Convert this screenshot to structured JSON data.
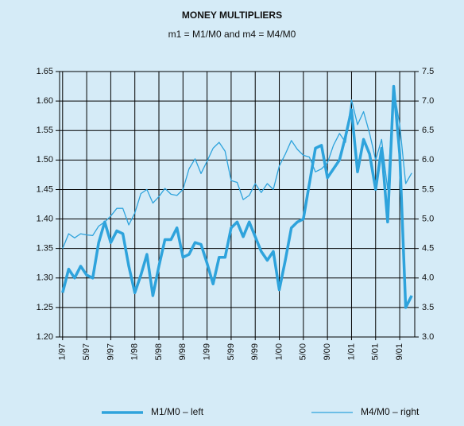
{
  "chart_data": {
    "type": "line",
    "title": "MONEY MULTIPLIERS",
    "subtitle": "m1 = M1/M0 and m4 = M4/M0",
    "categories": [
      "1/97",
      null,
      null,
      null,
      "5/97",
      null,
      null,
      null,
      "9/97",
      null,
      null,
      null,
      "1/98",
      null,
      null,
      null,
      "5/98",
      null,
      null,
      null,
      "9/98",
      null,
      null,
      null,
      "1/99",
      null,
      null,
      null,
      "5/99",
      null,
      null,
      null,
      "9/99",
      null,
      null,
      null,
      "1/00",
      null,
      null,
      null,
      "5/00",
      null,
      null,
      null,
      "9/00",
      null,
      null,
      null,
      "1/01",
      null,
      null,
      null,
      "5/01",
      null,
      null,
      null,
      "9/01",
      null,
      null
    ],
    "series": [
      {
        "name": "M1/M0 – left",
        "color": "#2ea3dc",
        "axis": "y",
        "values": [
          1.275,
          1.315,
          1.3,
          1.32,
          1.305,
          1.3,
          1.36,
          1.395,
          1.36,
          1.38,
          1.375,
          1.32,
          1.275,
          1.305,
          1.34,
          1.27,
          1.32,
          1.365,
          1.365,
          1.385,
          1.335,
          1.34,
          1.36,
          1.357,
          1.325,
          1.29,
          1.335,
          1.335,
          1.385,
          1.395,
          1.37,
          1.395,
          1.37,
          1.345,
          1.33,
          1.345,
          1.28,
          1.33,
          1.385,
          1.395,
          1.4,
          1.46,
          1.52,
          1.525,
          1.47,
          1.485,
          1.5,
          1.54,
          1.585,
          1.48,
          1.535,
          1.51,
          1.45,
          1.52,
          1.395,
          1.625,
          1.51,
          1.25,
          1.27
        ]
      },
      {
        "name": "M4/M0 – right",
        "color": "#2ea3dc",
        "axis": "y2",
        "values": [
          4.5,
          4.75,
          4.68,
          4.75,
          4.73,
          4.72,
          4.88,
          4.95,
          5.05,
          5.18,
          5.18,
          4.9,
          5.1,
          5.43,
          5.5,
          5.27,
          5.38,
          5.52,
          5.42,
          5.4,
          5.5,
          5.85,
          6.02,
          5.77,
          5.98,
          6.2,
          6.3,
          6.15,
          5.65,
          5.62,
          5.33,
          5.4,
          5.6,
          5.45,
          5.6,
          5.5,
          5.9,
          6.1,
          6.33,
          6.18,
          6.08,
          6.05,
          5.8,
          5.85,
          5.95,
          6.25,
          6.45,
          6.3,
          7.02,
          6.6,
          6.82,
          6.45,
          6.0,
          6.35,
          5.5,
          7.2,
          6.6,
          5.6,
          5.78
        ]
      }
    ],
    "ylim": [
      1.2,
      1.65
    ],
    "yticks": [
      {
        "value": 1.2,
        "label": "1.20"
      },
      1.25,
      {
        "value": 1.3,
        "label": "1.30"
      },
      1.35,
      {
        "value": 1.4,
        "label": "1.40"
      },
      1.45,
      {
        "value": 1.5,
        "label": "1.50"
      },
      1.55,
      {
        "value": 1.6,
        "label": "1.60"
      },
      1.65
    ],
    "y2lim": [
      3.0,
      7.5
    ],
    "y2ticks": [
      {
        "value": 3,
        "label": "3.0"
      },
      3.5,
      {
        "value": 4,
        "label": "4.0"
      },
      4.5,
      {
        "value": 5,
        "label": "5.0"
      },
      5.5,
      {
        "value": 6,
        "label": "6.0"
      },
      6.5,
      {
        "value": 7,
        "label": "7.0"
      },
      7.5
    ],
    "grid": true,
    "legend": "bottom"
  }
}
